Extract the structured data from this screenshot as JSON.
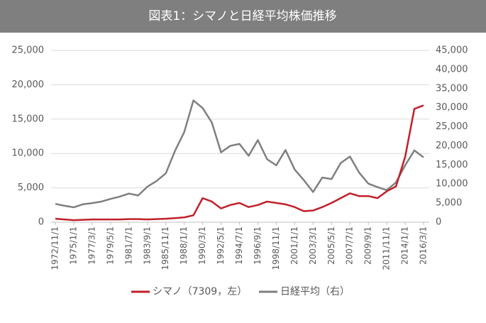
{
  "chart_data": {
    "type": "line",
    "title": "図表1：シマノと日経平均株価推移",
    "categories": [
      "1972/11/1",
      null,
      "1975/1/1",
      null,
      "1977/3/1",
      null,
      "1979/5/1",
      null,
      "1981/7/1",
      null,
      "1983/9/1",
      null,
      "1985/11/1",
      null,
      "1988/1/1",
      null,
      "1990/3/1",
      null,
      "1992/5/1",
      null,
      "1994/7/1",
      null,
      "1996/9/1",
      null,
      "1998/11/1",
      null,
      "2001/1/1",
      null,
      "2003/3/1",
      null,
      "2005/5/1",
      null,
      "2007/7/1",
      null,
      "2009/9/1",
      null,
      "2011/11/1",
      null,
      "2014/1/1",
      null,
      "2016/3/1"
    ],
    "series": [
      {
        "name": "シマノ（7309，左）",
        "color": "#c0202a",
        "values": [
          500,
          400,
          300,
          350,
          400,
          400,
          400,
          400,
          450,
          450,
          400,
          450,
          500,
          600,
          700,
          1000,
          3500,
          3000,
          2000,
          2500,
          2800,
          2200,
          2500,
          3000,
          2800,
          2600,
          2200,
          1600,
          1700,
          2200,
          2800,
          3500,
          4200,
          3800,
          3800,
          3500,
          4500,
          5200,
          9500,
          16500,
          17000
        ]
      },
      {
        "name": "日経平均（右）",
        "color": "#7f7f7f",
        "axis": "y2",
        "values": [
          4800,
          4300,
          3900,
          4700,
          5000,
          5400,
          6100,
          6700,
          7500,
          7000,
          9300,
          10800,
          12800,
          18700,
          23600,
          31900,
          29900,
          26100,
          18300,
          20000,
          20500,
          17400,
          21500,
          16500,
          14900,
          18900,
          13800,
          11000,
          7900,
          11700,
          11300,
          15500,
          17200,
          13000,
          10100,
          9200,
          8400,
          10400,
          14900,
          18800,
          17000
        ]
      }
    ],
    "ylim": [
      0,
      25000
    ],
    "yticks": [
      0,
      {
        "value": 5000,
        "label": "5,000"
      },
      {
        "value": 10000,
        "label": "10,000"
      },
      {
        "value": 15000,
        "label": "15,000"
      },
      {
        "value": 20000,
        "label": "20,000"
      },
      {
        "value": 25000,
        "label": "25,000"
      }
    ],
    "y2lim": [
      0,
      45000
    ],
    "y2ticks": [
      0,
      {
        "value": 5000,
        "label": "5,000"
      },
      {
        "value": 10000,
        "label": "10,000"
      },
      {
        "value": 15000,
        "label": "15,000"
      },
      {
        "value": 20000,
        "label": "20,000"
      },
      {
        "value": 25000,
        "label": "25,000"
      },
      {
        "value": 30000,
        "label": "30,000"
      },
      {
        "value": 35000,
        "label": "35,000"
      },
      {
        "value": 40000,
        "label": "40,000"
      },
      {
        "value": 45000,
        "label": "45,000"
      }
    ],
    "grid": true,
    "legend": "bottom"
  }
}
